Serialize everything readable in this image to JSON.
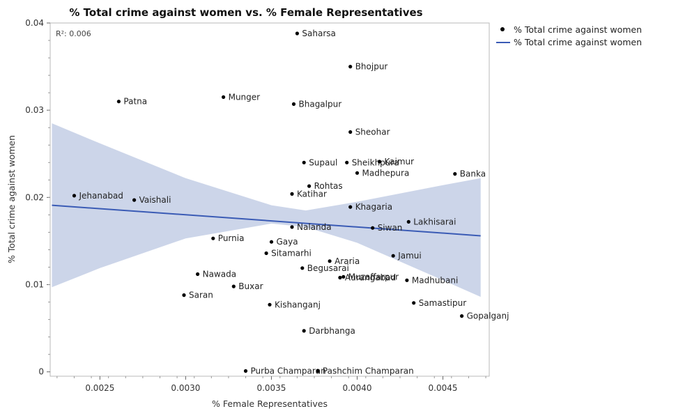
{
  "chart_data": {
    "type": "scatter",
    "title": "% Total crime against women vs. % Female Representatives",
    "xlabel": "% Female Representatives",
    "ylabel": "% Total crime against women",
    "xlim": [
      0.00221,
      0.00477
    ],
    "ylim": [
      -0.0005,
      0.04
    ],
    "xticks": [
      0.0025,
      0.003,
      0.0035,
      0.004,
      0.0045
    ],
    "xtick_labels": [
      "0.0025",
      "0.0030",
      "0.0035",
      "0.0040",
      "0.0045"
    ],
    "yticks": [
      0,
      0.01,
      0.02,
      0.03,
      0.04
    ],
    "ytick_labels": [
      "0",
      "0.01",
      "0.02",
      "0.03",
      "0.04"
    ],
    "annotation": "R²: 0.006",
    "legend_position": "right",
    "legend": [
      {
        "label": "% Total crime against women",
        "kind": "marker"
      },
      {
        "label": "% Total crime against women",
        "kind": "line"
      }
    ],
    "fit": {
      "x": [
        0.00222,
        0.00472
      ],
      "y": [
        0.0191,
        0.0156
      ]
    },
    "confidence_band": {
      "x": [
        0.00222,
        0.0025,
        0.003,
        0.0035,
        0.0037,
        0.004,
        0.0045,
        0.00472
      ],
      "upper": [
        0.0285,
        0.0262,
        0.0222,
        0.0191,
        0.0185,
        0.0195,
        0.0214,
        0.0222
      ],
      "lower": [
        0.0097,
        0.0119,
        0.0153,
        0.017,
        0.0166,
        0.0148,
        0.0105,
        0.0086
      ]
    },
    "points": [
      {
        "label": "Saharsa",
        "x": 0.00365,
        "y": 0.0388
      },
      {
        "label": "Bhojpur",
        "x": 0.00396,
        "y": 0.035
      },
      {
        "label": "Patna",
        "x": 0.00261,
        "y": 0.031
      },
      {
        "label": "Munger",
        "x": 0.00322,
        "y": 0.0315
      },
      {
        "label": "Bhagalpur",
        "x": 0.00363,
        "y": 0.0307
      },
      {
        "label": "Sheohar",
        "x": 0.00396,
        "y": 0.0275
      },
      {
        "label": "Supaul",
        "x": 0.00369,
        "y": 0.024
      },
      {
        "label": "Sheikhpura",
        "x": 0.00394,
        "y": 0.024
      },
      {
        "label": "Kaimur",
        "x": 0.00413,
        "y": 0.0241
      },
      {
        "label": "Madhepura",
        "x": 0.004,
        "y": 0.0228
      },
      {
        "label": "Banka",
        "x": 0.00457,
        "y": 0.0227
      },
      {
        "label": "Rohtas",
        "x": 0.00372,
        "y": 0.0213
      },
      {
        "label": "Katihar",
        "x": 0.00362,
        "y": 0.0204
      },
      {
        "label": "Jehanabad",
        "x": 0.00235,
        "y": 0.0202
      },
      {
        "label": "Vaishali",
        "x": 0.0027,
        "y": 0.0197
      },
      {
        "label": "Khagaria",
        "x": 0.00396,
        "y": 0.0189
      },
      {
        "label": "Lakhisarai",
        "x": 0.0043,
        "y": 0.0172
      },
      {
        "label": "Nalanda",
        "x": 0.00362,
        "y": 0.0166
      },
      {
        "label": "Siwan",
        "x": 0.00409,
        "y": 0.0165
      },
      {
        "label": "Purnia",
        "x": 0.00316,
        "y": 0.0153
      },
      {
        "label": "Gaya",
        "x": 0.0035,
        "y": 0.0149
      },
      {
        "label": "Sitamarhi",
        "x": 0.00347,
        "y": 0.0136
      },
      {
        "label": "Jamui",
        "x": 0.00421,
        "y": 0.0133
      },
      {
        "label": "Araria",
        "x": 0.00384,
        "y": 0.0127
      },
      {
        "label": "Begusarai",
        "x": 0.00368,
        "y": 0.0119
      },
      {
        "label": "Nawada",
        "x": 0.00307,
        "y": 0.0112
      },
      {
        "label": "Muzaffarpur",
        "x": 0.00392,
        "y": 0.0109
      },
      {
        "label": "Aurangabad",
        "x": 0.0039,
        "y": 0.0108
      },
      {
        "label": "Madhubani",
        "x": 0.00429,
        "y": 0.0105
      },
      {
        "label": "Buxar",
        "x": 0.00328,
        "y": 0.0098
      },
      {
        "label": "Saran",
        "x": 0.00299,
        "y": 0.0088
      },
      {
        "label": "Samastipur",
        "x": 0.00433,
        "y": 0.0079
      },
      {
        "label": "Kishanganj",
        "x": 0.00349,
        "y": 0.0077
      },
      {
        "label": "Gopalganj",
        "x": 0.00461,
        "y": 0.0064
      },
      {
        "label": "Darbhanga",
        "x": 0.00369,
        "y": 0.0047
      },
      {
        "label": "Purba Champaran",
        "x": 0.00335,
        "y": 0.0001
      },
      {
        "label": "Pashchim Champaran",
        "x": 0.00377,
        "y": 0.0001
      }
    ]
  }
}
